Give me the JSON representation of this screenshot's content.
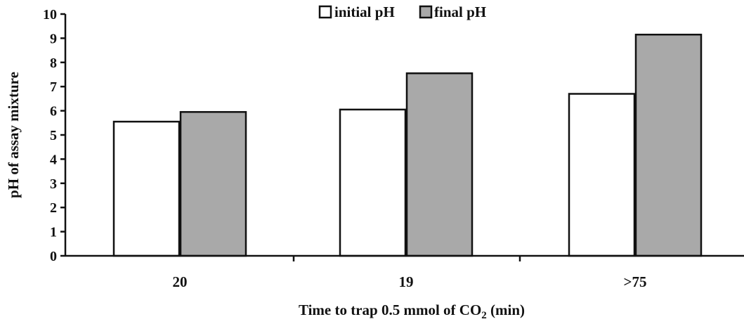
{
  "chart_data": {
    "type": "bar",
    "categories": [
      "20",
      "19",
      ">75"
    ],
    "series": [
      {
        "name": "initial pH",
        "values": [
          5.55,
          6.05,
          6.7
        ],
        "color": "#ffffff"
      },
      {
        "name": "final pH",
        "values": [
          5.95,
          7.55,
          9.15
        ],
        "color": "#a9a9a9"
      }
    ],
    "xlabel": {
      "main": "Time to trap 0.5 mmol of CO",
      "sub": "2",
      "suffix": " (min)"
    },
    "ylabel": "pH of assay mixture",
    "ylim": [
      0,
      10
    ],
    "yticks": [
      "0",
      "1",
      "2",
      "3",
      "4",
      "5",
      "6",
      "7",
      "8",
      "9",
      "10"
    ],
    "legend_position": "top-center",
    "grid": false
  }
}
